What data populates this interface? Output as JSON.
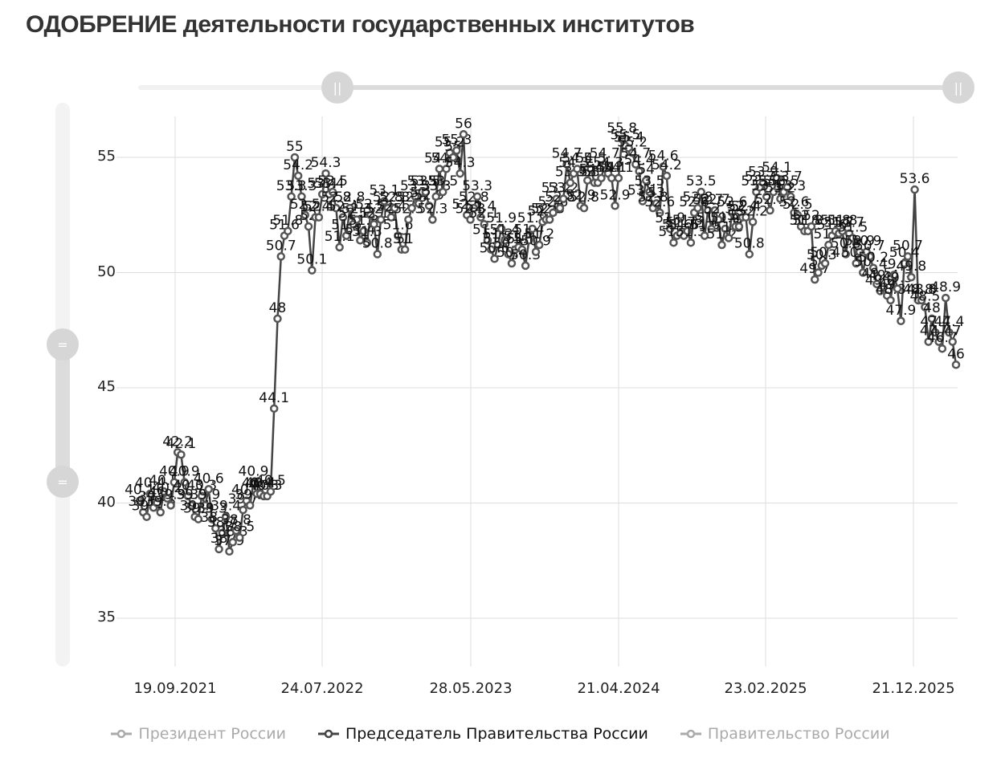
{
  "title": "ОДОБРЕНИЕ деятельности государственных институтов",
  "sliders": {
    "horizontal": {
      "start_handle_icon": "grip-vertical-icon",
      "end_handle_icon": "grip-vertical-icon",
      "start_glyph": "||",
      "end_glyph": "||"
    },
    "vertical": {
      "top_handle_icon": "grip-horizontal-icon",
      "bottom_handle_icon": "grip-horizontal-icon",
      "top_glyph": "=",
      "bottom_glyph": "="
    }
  },
  "legend": [
    {
      "label": "Президент России",
      "active": false,
      "color": "#aaaaaa"
    },
    {
      "label": "Председатель Правительства России",
      "active": true,
      "color": "#444444"
    },
    {
      "label": "Правительство России",
      "active": false,
      "color": "#aaaaaa"
    }
  ],
  "axes": {
    "y_ticks": [
      "55",
      "50",
      "45",
      "40",
      "35"
    ],
    "x_ticks": [
      "19.09.2021",
      "24.07.2022",
      "28.05.2023",
      "21.04.2024",
      "23.02.2025",
      "21.12.2025"
    ]
  },
  "chart_data": {
    "type": "line",
    "title": "ОДОБРЕНИЕ деятельности государственных институтов",
    "xlabel": "",
    "ylabel": "",
    "ylim": [
      33,
      57.5
    ],
    "grid": true,
    "legend_position": "bottom",
    "x_tick_labels": [
      "19.09.2021",
      "24.07.2022",
      "28.05.2023",
      "21.04.2024",
      "23.02.2025",
      "21.12.2025"
    ],
    "series": [
      {
        "name": "Председатель Правительства России",
        "visible": true,
        "color": "#444444",
        "values": [
          40.1,
          39.6,
          39.4,
          40.4,
          39.8,
          40.0,
          39.6,
          40.5,
          40.2,
          39.9,
          40.9,
          42.2,
          42.1,
          40.9,
          40.3,
          39.9,
          39.4,
          39.3,
          40.3,
          39.9,
          40.6,
          39.3,
          38.9,
          38.0,
          38.7,
          39.4,
          37.9,
          38.3,
          38.8,
          38.5,
          39.7,
          40.1,
          39.9,
          40.9,
          40.4,
          40.4,
          40.3,
          40.3,
          40.5,
          44.1,
          48.0,
          50.7,
          51.6,
          51.8,
          53.3,
          55.0,
          54.2,
          53.3,
          52.5,
          52.0,
          50.1,
          52.4,
          52.4,
          53.4,
          54.3,
          53.4,
          53.5,
          52.8,
          51.1,
          52.4,
          51.6,
          52.8,
          52.1,
          52.3,
          51.4,
          51.8,
          51.3,
          52.5,
          52.1,
          50.8,
          52.3,
          53.1,
          52.8,
          52.4,
          52.8,
          51.6,
          51.0,
          51.0,
          52.3,
          52.8,
          53.3,
          53.0,
          53.5,
          53.5,
          52.9,
          52.3,
          53.3,
          54.5,
          53.5,
          54.5,
          55.2,
          55.0,
          55.3,
          54.3,
          56.0,
          52.5,
          52.3,
          52.8,
          53.3,
          52.4,
          52.1,
          51.4,
          51.0,
          50.6,
          51.2,
          51.9,
          51.4,
          50.8,
          50.4,
          51.0,
          51.1,
          51.0,
          50.3,
          51.4,
          51.9,
          50.9,
          51.2,
          52.2,
          52.3,
          52.3,
          52.6,
          53.2,
          52.8,
          53.2,
          54.7,
          53.9,
          54.3,
          54.5,
          52.9,
          52.8,
          54.0,
          54.5,
          53.9,
          53.9,
          54.1,
          54.7,
          54.3,
          54.1,
          52.9,
          54.1,
          55.8,
          55.5,
          55.4,
          55.2,
          54.7,
          54.4,
          53.1,
          54.0,
          53.5,
          52.8,
          53.0,
          52.6,
          54.6,
          54.2,
          51.9,
          51.3,
          51.6,
          51.7,
          51.6,
          51.8,
          51.3,
          52.6,
          52.8,
          53.5,
          51.6,
          52.7,
          51.9,
          52.7,
          52.3,
          51.2,
          51.9,
          51.5,
          52.6,
          52.0,
          52.0,
          52.4,
          52.4,
          50.8,
          52.2,
          53.5,
          53.7,
          53.9,
          53.3,
          52.7,
          53.5,
          54.1,
          53.2,
          53.5,
          53.7,
          53.3,
          52.6,
          52.5,
          52.0,
          51.8,
          51.8,
          52.0,
          49.7,
          50.0,
          50.3,
          50.4,
          51.2,
          51.6,
          51.8,
          51.7,
          51.8,
          50.8,
          51.7,
          51.5,
          50.4,
          50.9,
          50.0,
          50.9,
          50.7,
          50.2,
          49.5,
          49.2,
          49.4,
          49.0,
          48.8,
          49.9,
          49.3,
          47.9,
          50.4,
          50.7,
          49.8,
          53.6,
          48.8,
          48.8,
          48.5,
          47.0,
          48.0,
          47.4,
          47.0,
          46.7,
          48.9,
          47.4,
          47.0,
          46.0
        ]
      },
      {
        "name": "Президент России",
        "visible": false,
        "color": "#aaaaaa",
        "values": []
      },
      {
        "name": "Правительство России",
        "visible": false,
        "color": "#aaaaaa",
        "values": []
      }
    ]
  }
}
